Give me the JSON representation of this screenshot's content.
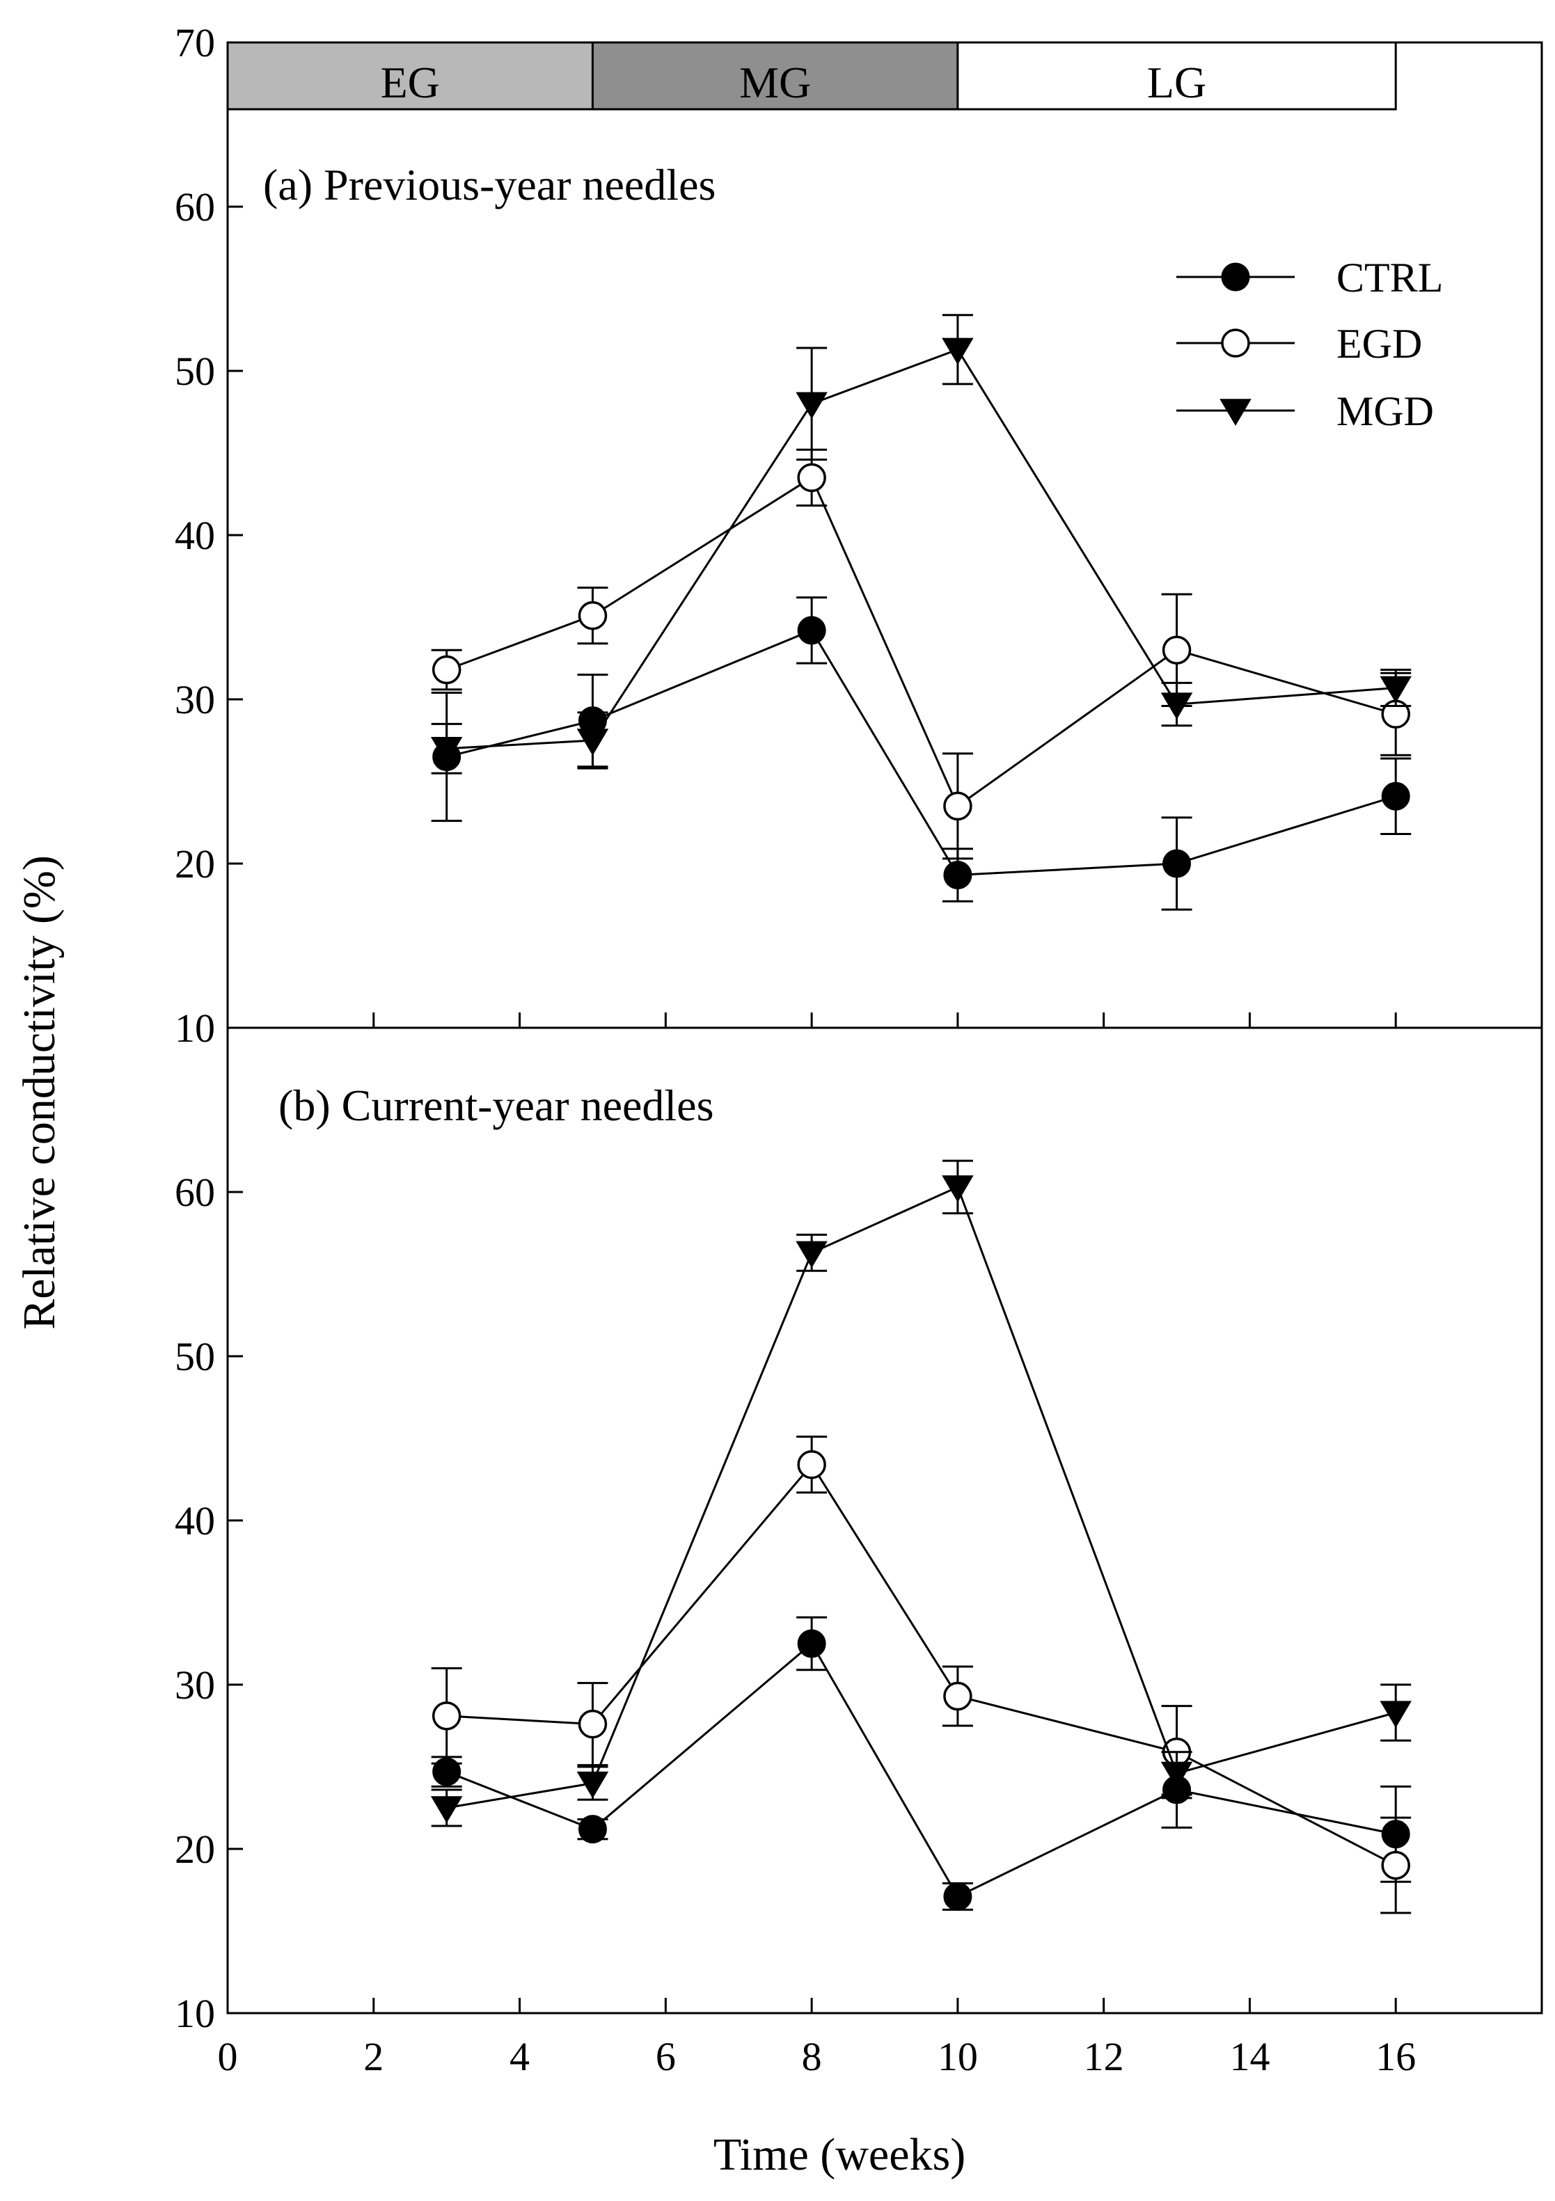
{
  "chart_data": {
    "type": "line",
    "ylabel": "Relative conductivity (%)",
    "xlabel": "Time (weeks)",
    "xlim": [
      0,
      18
    ],
    "ylim": [
      10,
      70
    ],
    "x_ticks": [
      0,
      2,
      4,
      6,
      8,
      10,
      12,
      14,
      16
    ],
    "y_ticks": [
      10,
      20,
      30,
      40,
      50,
      60,
      70
    ],
    "legend_position": "top-right of panel (a)",
    "colors": {
      "line": "#000000",
      "filled": "#000000",
      "open": "#ffffff"
    },
    "phases": [
      {
        "label": "EG",
        "start": 0,
        "end": 5,
        "color": "#b8b8b8"
      },
      {
        "label": "MG",
        "start": 5,
        "end": 10,
        "color": "#8f8f8f"
      },
      {
        "label": "LG",
        "start": 10,
        "end": 16,
        "color": "#ffffff"
      }
    ],
    "legend": [
      {
        "name": "CTRL",
        "marker": "filled-circle"
      },
      {
        "name": "EGD",
        "marker": "open-circle"
      },
      {
        "name": "MGD",
        "marker": "filled-down-triangle"
      }
    ],
    "panels": [
      {
        "label": "(a) Previous-year needles",
        "ylim": [
          10,
          70
        ],
        "y_tick_labels": [
          "10",
          "20",
          "30",
          "40",
          "50",
          "60",
          "70"
        ],
        "x": [
          3,
          5,
          8,
          10,
          13,
          16
        ],
        "series": [
          {
            "name": "CTRL",
            "values": [
              26.5,
              28.7,
              34.2,
              19.3,
              20.0,
              24.1
            ],
            "errors": [
              3.9,
              2.8,
              2.0,
              1.6,
              2.8,
              2.3
            ]
          },
          {
            "name": "EGD",
            "values": [
              31.8,
              35.1,
              43.5,
              23.5,
              33.0,
              29.1
            ],
            "errors": [
              1.2,
              1.7,
              1.7,
              3.2,
              3.4,
              2.5
            ]
          },
          {
            "name": "MGD",
            "values": [
              27.0,
              27.5,
              48.0,
              51.3,
              29.7,
              30.7
            ],
            "errors": [
              1.5,
              1.7,
              3.4,
              2.1,
              1.3,
              1.1
            ]
          }
        ]
      },
      {
        "label": "(b) Current-year needles",
        "ylim": [
          10,
          70
        ],
        "y_tick_labels": [
          "10",
          "20",
          "30",
          "40",
          "50",
          "60"
        ],
        "x": [
          3,
          5,
          8,
          10,
          13,
          16
        ],
        "series": [
          {
            "name": "CTRL",
            "values": [
              24.7,
              21.2,
              32.5,
              17.1,
              23.6,
              20.9
            ],
            "errors": [
              0.9,
              0.6,
              1.6,
              0.8,
              2.3,
              2.9
            ]
          },
          {
            "name": "EGD",
            "values": [
              28.1,
              27.6,
              43.4,
              29.3,
              25.9,
              19.0
            ],
            "errors": [
              2.9,
              2.5,
              1.7,
              1.8,
              2.8,
              2.9
            ]
          },
          {
            "name": "MGD",
            "values": [
              22.5,
              24.0,
              56.3,
              60.3,
              24.6,
              28.3
            ],
            "errors": [
              1.1,
              1.0,
              1.1,
              1.6,
              1.3,
              1.7
            ]
          }
        ]
      }
    ]
  }
}
